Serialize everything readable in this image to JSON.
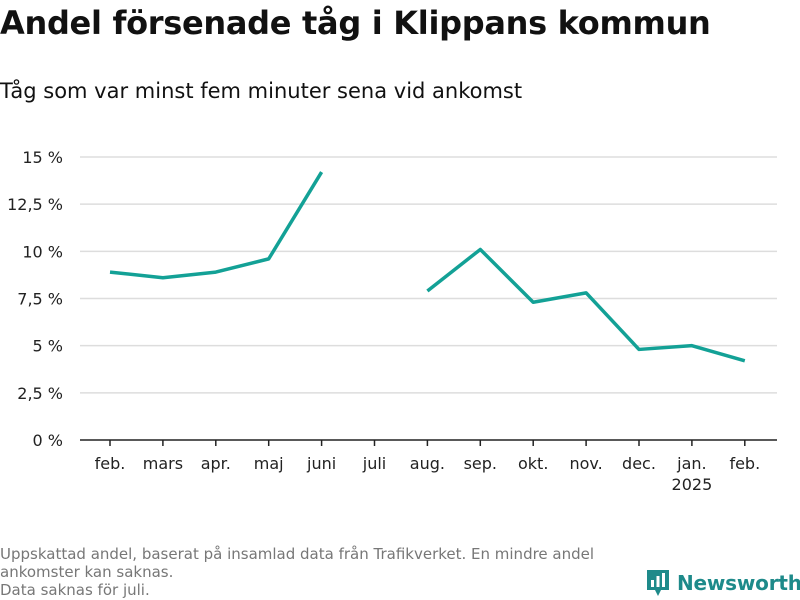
{
  "title": "Andel försenade tåg i Klippans kommun",
  "subtitle": "Tåg som var minst fem minuter sena vid ankomst",
  "footnote": {
    "line1": "Uppskattad andel, baserat på insamlad data från Trafikverket. En mindre andel ankomster kan saknas.",
    "line2": "Data saknas för juli."
  },
  "brand": {
    "name": "Newsworthy",
    "icon": "newsworthy-logo-icon",
    "color": "#1e8a8a"
  },
  "chart_data": {
    "type": "line",
    "categories": [
      "feb.",
      "mars",
      "apr.",
      "maj",
      "juni",
      "juli",
      "aug.",
      "sep.",
      "okt.",
      "nov.",
      "dec.",
      "jan.",
      "feb."
    ],
    "category_sublabels": [
      "",
      "",
      "",
      "",
      "",
      "",
      "",
      "",
      "",
      "",
      "",
      "2025",
      ""
    ],
    "series": [
      {
        "values": [
          8.9,
          8.6,
          8.9,
          9.6,
          14.2,
          null,
          7.9,
          10.1,
          7.3,
          7.8,
          4.8,
          5.0,
          4.2
        ]
      }
    ],
    "yticks": [
      0,
      2.5,
      5,
      7.5,
      10,
      12.5,
      15
    ],
    "ytick_labels": [
      "0 %",
      "2,5 %",
      "5 %",
      "7,5 %",
      "10 %",
      "12,5 %",
      "15 %"
    ],
    "ylim": [
      0,
      15
    ],
    "grid": true,
    "line_color": "#13a196",
    "grid_color": "#dddddd",
    "axis_color": "#222222"
  }
}
